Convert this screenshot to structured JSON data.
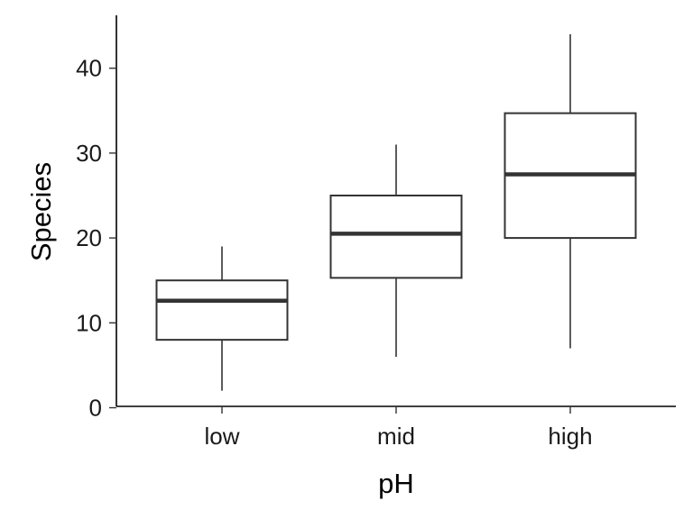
{
  "chart_data": {
    "type": "boxplot",
    "title": "",
    "xlabel": "pH",
    "ylabel": "Species",
    "categories": [
      "low",
      "mid",
      "high"
    ],
    "boxes": [
      {
        "category": "low",
        "min": 2,
        "q1": 8,
        "median": 12.6,
        "q3": 15,
        "max": 19
      },
      {
        "category": "mid",
        "min": 6,
        "q1": 15.3,
        "median": 20.5,
        "q3": 25,
        "max": 31
      },
      {
        "category": "high",
        "min": 7,
        "q1": 20,
        "median": 27.5,
        "q3": 34.7,
        "max": 44
      }
    ],
    "ylim": [
      0,
      46
    ],
    "yticks": [
      0,
      10,
      20,
      30,
      40
    ],
    "ytick_labels": [
      "0",
      "10",
      "20",
      "30",
      "40"
    ],
    "grid": false
  }
}
